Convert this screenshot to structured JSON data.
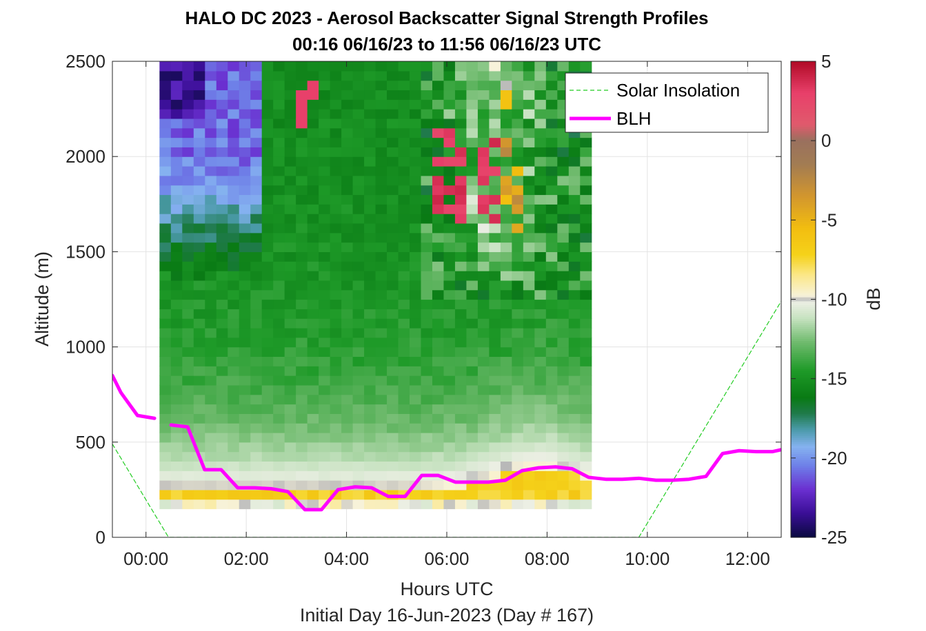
{
  "chart_data": {
    "type": "heatmap",
    "title": "HALO DC 2023 - Aerosol Backscatter Signal Strength Profiles",
    "subtitle": "00:16 06/16/23 to 11:56 06/16/23  UTC",
    "xlabel": "Hours UTC",
    "xlabel_note": "Initial Day 16-Jun-2023 (Day # 167)",
    "ylabel": "Altitude (m)",
    "xlim_hours": [
      -0.67,
      12.67
    ],
    "ylim": [
      0,
      2500
    ],
    "x_ticks": [
      {
        "v": 0,
        "label": "00:00"
      },
      {
        "v": 2,
        "label": "02:00"
      },
      {
        "v": 4,
        "label": "04:00"
      },
      {
        "v": 6,
        "label": "06:00"
      },
      {
        "v": 8,
        "label": "08:00"
      },
      {
        "v": 10,
        "label": "10:00"
      },
      {
        "v": 12,
        "label": "12:00"
      }
    ],
    "y_ticks": [
      {
        "v": 0,
        "label": "0"
      },
      {
        "v": 500,
        "label": "500"
      },
      {
        "v": 1000,
        "label": "1000"
      },
      {
        "v": 1500,
        "label": "1500"
      },
      {
        "v": 2000,
        "label": "2000"
      },
      {
        "v": 2500,
        "label": "2500"
      }
    ],
    "grid": true,
    "legend_position": "top-right",
    "colorbar": {
      "label": "dB",
      "min": -25,
      "max": 5,
      "ticks": [
        {
          "v": 5,
          "label": "5"
        },
        {
          "v": 0,
          "label": "0"
        },
        {
          "v": -5,
          "label": "-5"
        },
        {
          "v": -10,
          "label": "-10"
        },
        {
          "v": -15,
          "label": "-15"
        },
        {
          "v": -20,
          "label": "-20"
        },
        {
          "v": -25,
          "label": "-25"
        }
      ],
      "stops": [
        {
          "v": -25,
          "color": "#0a0a40"
        },
        {
          "v": -23.5,
          "color": "#3a0e96"
        },
        {
          "v": -22,
          "color": "#6a2fd0"
        },
        {
          "v": -20.5,
          "color": "#6e7fe8"
        },
        {
          "v": -19.3,
          "color": "#85b2f0"
        },
        {
          "v": -18.2,
          "color": "#4a9aa8"
        },
        {
          "v": -17.2,
          "color": "#1f7a4a"
        },
        {
          "v": -16.2,
          "color": "#097a14"
        },
        {
          "v": -14.5,
          "color": "#1e9a28"
        },
        {
          "v": -12.7,
          "color": "#70bb6e"
        },
        {
          "v": -11.2,
          "color": "#c6e2c0"
        },
        {
          "v": -10.2,
          "color": "#ecefe4"
        },
        {
          "v": -10,
          "color": "#b8b8b8"
        },
        {
          "v": -9.8,
          "color": "#f7f2da"
        },
        {
          "v": -8.5,
          "color": "#fbe88a"
        },
        {
          "v": -7.2,
          "color": "#f5d21a"
        },
        {
          "v": -5.5,
          "color": "#f2bd10"
        },
        {
          "v": -3.5,
          "color": "#d2962e"
        },
        {
          "v": -1.5,
          "color": "#a27c52"
        },
        {
          "v": 0,
          "color": "#9a705e"
        },
        {
          "v": 1,
          "color": "#e05a6c"
        },
        {
          "v": 3,
          "color": "#e8406a"
        },
        {
          "v": 5,
          "color": "#b00a26"
        }
      ]
    },
    "heatmap_grid": {
      "t_start": 0.27,
      "t_step": 0.2267,
      "n_cols": 38,
      "alt_start": 150,
      "alt_step": 50,
      "n_rows": 47,
      "values_note": "dB per time/altitude bin, generated by the page script"
    },
    "series": [
      {
        "name": "Solar Insolation",
        "style": "dashed",
        "color": "#22cc22",
        "segments": [
          [
            [
              -0.67,
              490
            ],
            [
              0.45,
              0
            ],
            [
              9.83,
              0
            ],
            [
              12.67,
              1240
            ]
          ]
        ]
      },
      {
        "name": "BLH",
        "style": "solid",
        "color": "#ff00ff",
        "segments": [
          [
            [
              -0.67,
              850
            ],
            [
              -0.5,
              760
            ],
            [
              -0.17,
              640
            ],
            [
              0.17,
              625
            ]
          ],
          [
            [
              0.5,
              590
            ],
            [
              0.83,
              580
            ],
            [
              1.17,
              355
            ],
            [
              1.5,
              355
            ],
            [
              1.83,
              260
            ],
            [
              2.17,
              260
            ],
            [
              2.5,
              255
            ],
            [
              2.83,
              240
            ],
            [
              3.17,
              145
            ],
            [
              3.5,
              145
            ],
            [
              3.83,
              250
            ],
            [
              4.17,
              265
            ],
            [
              4.5,
              260
            ],
            [
              4.83,
              215
            ],
            [
              5.17,
              215
            ],
            [
              5.5,
              325
            ],
            [
              5.83,
              325
            ],
            [
              6.17,
              290
            ],
            [
              6.5,
              290
            ],
            [
              6.83,
              290
            ],
            [
              7.17,
              300
            ],
            [
              7.5,
              350
            ],
            [
              7.83,
              365
            ],
            [
              8.17,
              370
            ],
            [
              8.5,
              360
            ],
            [
              8.83,
              315
            ],
            [
              9.17,
              305
            ],
            [
              9.5,
              305
            ],
            [
              9.83,
              310
            ],
            [
              10.17,
              300
            ],
            [
              10.5,
              300
            ],
            [
              10.83,
              305
            ],
            [
              11.17,
              320
            ],
            [
              11.5,
              440
            ],
            [
              11.83,
              455
            ],
            [
              12.17,
              450
            ],
            [
              12.5,
              450
            ],
            [
              12.67,
              460
            ]
          ]
        ]
      }
    ]
  }
}
